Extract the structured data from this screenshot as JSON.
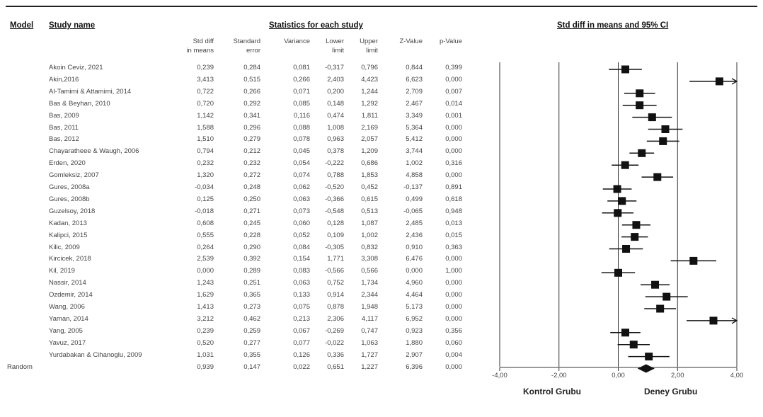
{
  "chart_data": {
    "type": "forest",
    "header": {
      "model": "Model",
      "study_name": "Study name",
      "stats_group": "Statistics for each study",
      "plot_title": "Std diff in means and 95% CI"
    },
    "columns": [
      "Std diff\nin means",
      "Standard\nerror",
      "Variance",
      "Lower\nlimit",
      "Upper\nlimit",
      "Z-Value",
      "p-Value"
    ],
    "studies": [
      {
        "name": "Akoin Ceviz, 2021",
        "values": [
          "0,239",
          "0,284",
          "0,081",
          "-0,317",
          "0,796",
          "0,844",
          "0,399"
        ],
        "d": 0.239,
        "lower": -0.317,
        "upper": 0.796
      },
      {
        "name": "Akin,2016",
        "values": [
          "3,413",
          "0,515",
          "0,266",
          "2,403",
          "4,423",
          "6,623",
          "0,000"
        ],
        "d": 3.413,
        "lower": 2.403,
        "upper": 4.423
      },
      {
        "name": "Al-Tamimi & Attamimi, 2014",
        "values": [
          "0,722",
          "0,266",
          "0,071",
          "0,200",
          "1,244",
          "2,709",
          "0,007"
        ],
        "d": 0.722,
        "lower": 0.2,
        "upper": 1.244
      },
      {
        "name": "Bas & Beyhan, 2010",
        "values": [
          "0,720",
          "0,292",
          "0,085",
          "0,148",
          "1,292",
          "2,467",
          "0,014"
        ],
        "d": 0.72,
        "lower": 0.148,
        "upper": 1.292
      },
      {
        "name": "Bas, 2009",
        "values": [
          "1,142",
          "0,341",
          "0,116",
          "0,474",
          "1,811",
          "3,349",
          "0,001"
        ],
        "d": 1.142,
        "lower": 0.474,
        "upper": 1.811
      },
      {
        "name": "Bas, 2011",
        "values": [
          "1,588",
          "0,296",
          "0,088",
          "1,008",
          "2,169",
          "5,364",
          "0,000"
        ],
        "d": 1.588,
        "lower": 1.008,
        "upper": 2.169
      },
      {
        "name": "Bas, 2012",
        "values": [
          "1,510",
          "0,279",
          "0,078",
          "0,963",
          "2,057",
          "5,412",
          "0,000"
        ],
        "d": 1.51,
        "lower": 0.963,
        "upper": 2.057
      },
      {
        "name": "Chayaratheee & Waugh, 2006",
        "values": [
          "0,794",
          "0,212",
          "0,045",
          "0,378",
          "1,209",
          "3,744",
          "0,000"
        ],
        "d": 0.794,
        "lower": 0.378,
        "upper": 1.209
      },
      {
        "name": "Erden, 2020",
        "values": [
          "0,232",
          "0,232",
          "0,054",
          "-0,222",
          "0,686",
          "1,002",
          "0,316"
        ],
        "d": 0.232,
        "lower": -0.222,
        "upper": 0.686
      },
      {
        "name": "Gomleksiz, 2007",
        "values": [
          "1,320",
          "0,272",
          "0,074",
          "0,788",
          "1,853",
          "4,858",
          "0,000"
        ],
        "d": 1.32,
        "lower": 0.788,
        "upper": 1.853
      },
      {
        "name": "Gures, 2008a",
        "values": [
          "-0,034",
          "0,248",
          "0,062",
          "-0,520",
          "0,452",
          "-0,137",
          "0,891"
        ],
        "d": -0.034,
        "lower": -0.52,
        "upper": 0.452
      },
      {
        "name": "Gures, 2008b",
        "values": [
          "0,125",
          "0,250",
          "0,063",
          "-0,366",
          "0,615",
          "0,499",
          "0,618"
        ],
        "d": 0.125,
        "lower": -0.366,
        "upper": 0.615
      },
      {
        "name": "Guzelsoy, 2018",
        "values": [
          "-0,018",
          "0,271",
          "0,073",
          "-0,548",
          "0,513",
          "-0,065",
          "0,948"
        ],
        "d": -0.018,
        "lower": -0.548,
        "upper": 0.513
      },
      {
        "name": "Kadan, 2013",
        "values": [
          "0,608",
          "0,245",
          "0,060",
          "0,128",
          "1,087",
          "2,485",
          "0,013"
        ],
        "d": 0.608,
        "lower": 0.128,
        "upper": 1.087
      },
      {
        "name": "Kalipci, 2015",
        "values": [
          "0,555",
          "0,228",
          "0,052",
          "0,109",
          "1,002",
          "2,436",
          "0,015"
        ],
        "d": 0.555,
        "lower": 0.109,
        "upper": 1.002
      },
      {
        "name": "Kilic, 2009",
        "values": [
          "0,264",
          "0,290",
          "0,084",
          "-0,305",
          "0,832",
          "0,910",
          "0,363"
        ],
        "d": 0.264,
        "lower": -0.305,
        "upper": 0.832
      },
      {
        "name": "Kircicek, 2018",
        "values": [
          "2,539",
          "0,392",
          "0,154",
          "1,771",
          "3,308",
          "6,476",
          "0,000"
        ],
        "d": 2.539,
        "lower": 1.771,
        "upper": 3.308
      },
      {
        "name": "Kil, 2019",
        "values": [
          "0,000",
          "0,289",
          "0,083",
          "-0,566",
          "0,566",
          "0,000",
          "1,000"
        ],
        "d": 0.0,
        "lower": -0.566,
        "upper": 0.566
      },
      {
        "name": "Nassir, 2014",
        "values": [
          "1,243",
          "0,251",
          "0,063",
          "0,752",
          "1,734",
          "4,960",
          "0,000"
        ],
        "d": 1.243,
        "lower": 0.752,
        "upper": 1.734
      },
      {
        "name": "Ozdemir, 2014",
        "values": [
          "1,629",
          "0,365",
          "0,133",
          "0,914",
          "2,344",
          "4,464",
          "0,000"
        ],
        "d": 1.629,
        "lower": 0.914,
        "upper": 2.344
      },
      {
        "name": "Wang, 2006",
        "values": [
          "1,413",
          "0,273",
          "0,075",
          "0,878",
          "1,948",
          "5,173",
          "0,000"
        ],
        "d": 1.413,
        "lower": 0.878,
        "upper": 1.948
      },
      {
        "name": "Yaman, 2014",
        "values": [
          "3,212",
          "0,462",
          "0,213",
          "2,306",
          "4,117",
          "6,952",
          "0,000"
        ],
        "d": 3.212,
        "lower": 2.306,
        "upper": 4.117
      },
      {
        "name": "Yang, 2005",
        "values": [
          "0,239",
          "0,259",
          "0,067",
          "-0,269",
          "0,747",
          "0,923",
          "0,356"
        ],
        "d": 0.239,
        "lower": -0.269,
        "upper": 0.747
      },
      {
        "name": "Yavuz, 2017",
        "values": [
          "0,520",
          "0,277",
          "0,077",
          "-0,022",
          "1,063",
          "1,880",
          "0,060"
        ],
        "d": 0.52,
        "lower": -0.022,
        "upper": 1.063
      },
      {
        "name": "Yurdabakan & Cihanoglu, 2009",
        "values": [
          "1,031",
          "0,355",
          "0,126",
          "0,336",
          "1,727",
          "2,907",
          "0,004"
        ],
        "d": 1.031,
        "lower": 0.336,
        "upper": 1.727
      }
    ],
    "summary": {
      "model": "Random",
      "values": [
        "0,939",
        "0,147",
        "0,022",
        "0,651",
        "1,227",
        "6,396",
        "0,000"
      ],
      "d": 0.939,
      "lower": 0.651,
      "upper": 1.227
    },
    "xlim": [
      -4,
      4
    ],
    "xticks": [
      -4,
      -2,
      0,
      2,
      4
    ],
    "xtick_labels": [
      "-4,00",
      "-2,00",
      "0,00",
      "2,00",
      "4,00"
    ],
    "group_labels": {
      "left": "Kontrol Grubu",
      "right": "Deney Grubu"
    }
  }
}
